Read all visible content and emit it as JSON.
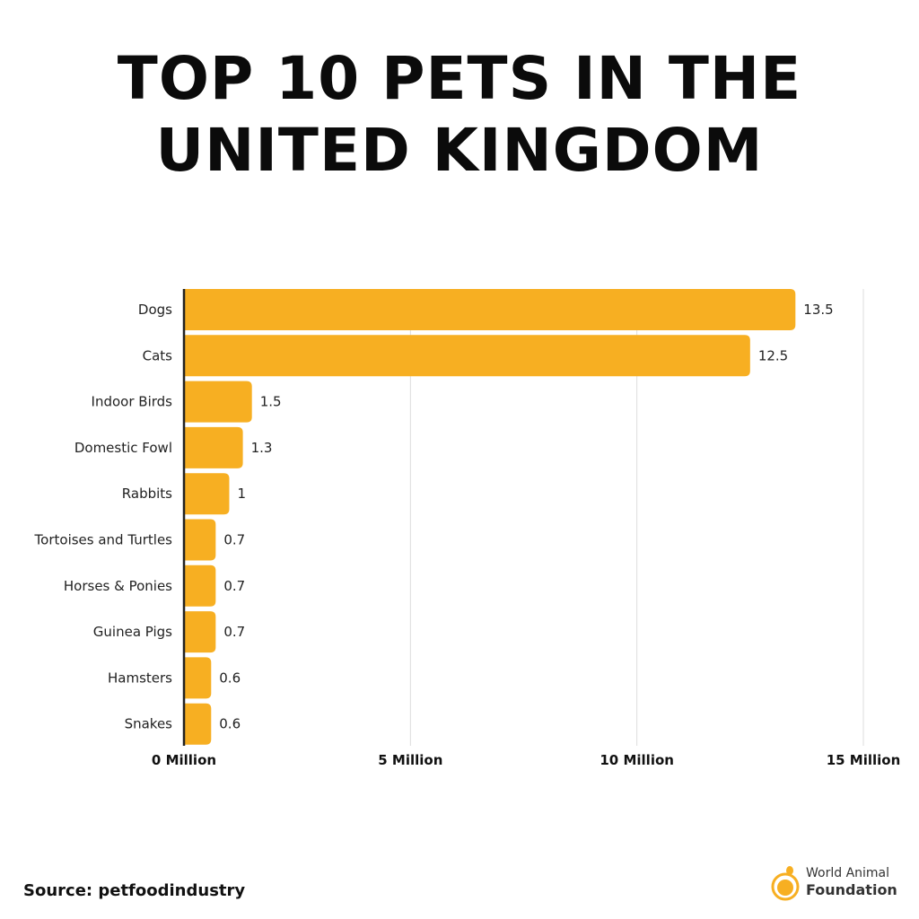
{
  "title_line1": "TOP 10 PETS IN THE",
  "title_line2": "UNITED KINGDOM",
  "source": "Source: petfoodindustry",
  "logo": {
    "line1": "World Animal",
    "line2": "Foundation"
  },
  "colors": {
    "bar": "#F7AF22",
    "axis": "#222222",
    "grid": "#DDDDDD"
  },
  "chart_data": {
    "type": "bar",
    "orientation": "horizontal",
    "categories": [
      "Dogs",
      "Cats",
      "Indoor Birds",
      "Domestic Fowl",
      "Rabbits",
      "Tortoises and Turtles",
      "Horses & Ponies",
      "Guinea Pigs",
      "Hamsters",
      "Snakes"
    ],
    "values": [
      13.5,
      12.5,
      1.5,
      1.3,
      1,
      0.7,
      0.7,
      0.7,
      0.6,
      0.6
    ],
    "data_labels": [
      "13.5",
      "12.5",
      "1.5",
      "1.3",
      "1",
      "0.7",
      "0.7",
      "0.7",
      "0.6",
      "0.6"
    ],
    "xlim": [
      0,
      15
    ],
    "xticks": [
      0,
      5,
      10,
      15
    ],
    "xtick_labels": [
      "0 Million",
      "5 Million",
      "10 Million",
      "15 Million"
    ],
    "grid": "vertical",
    "title": "TOP 10 PETS IN THE UNITED KINGDOM"
  }
}
